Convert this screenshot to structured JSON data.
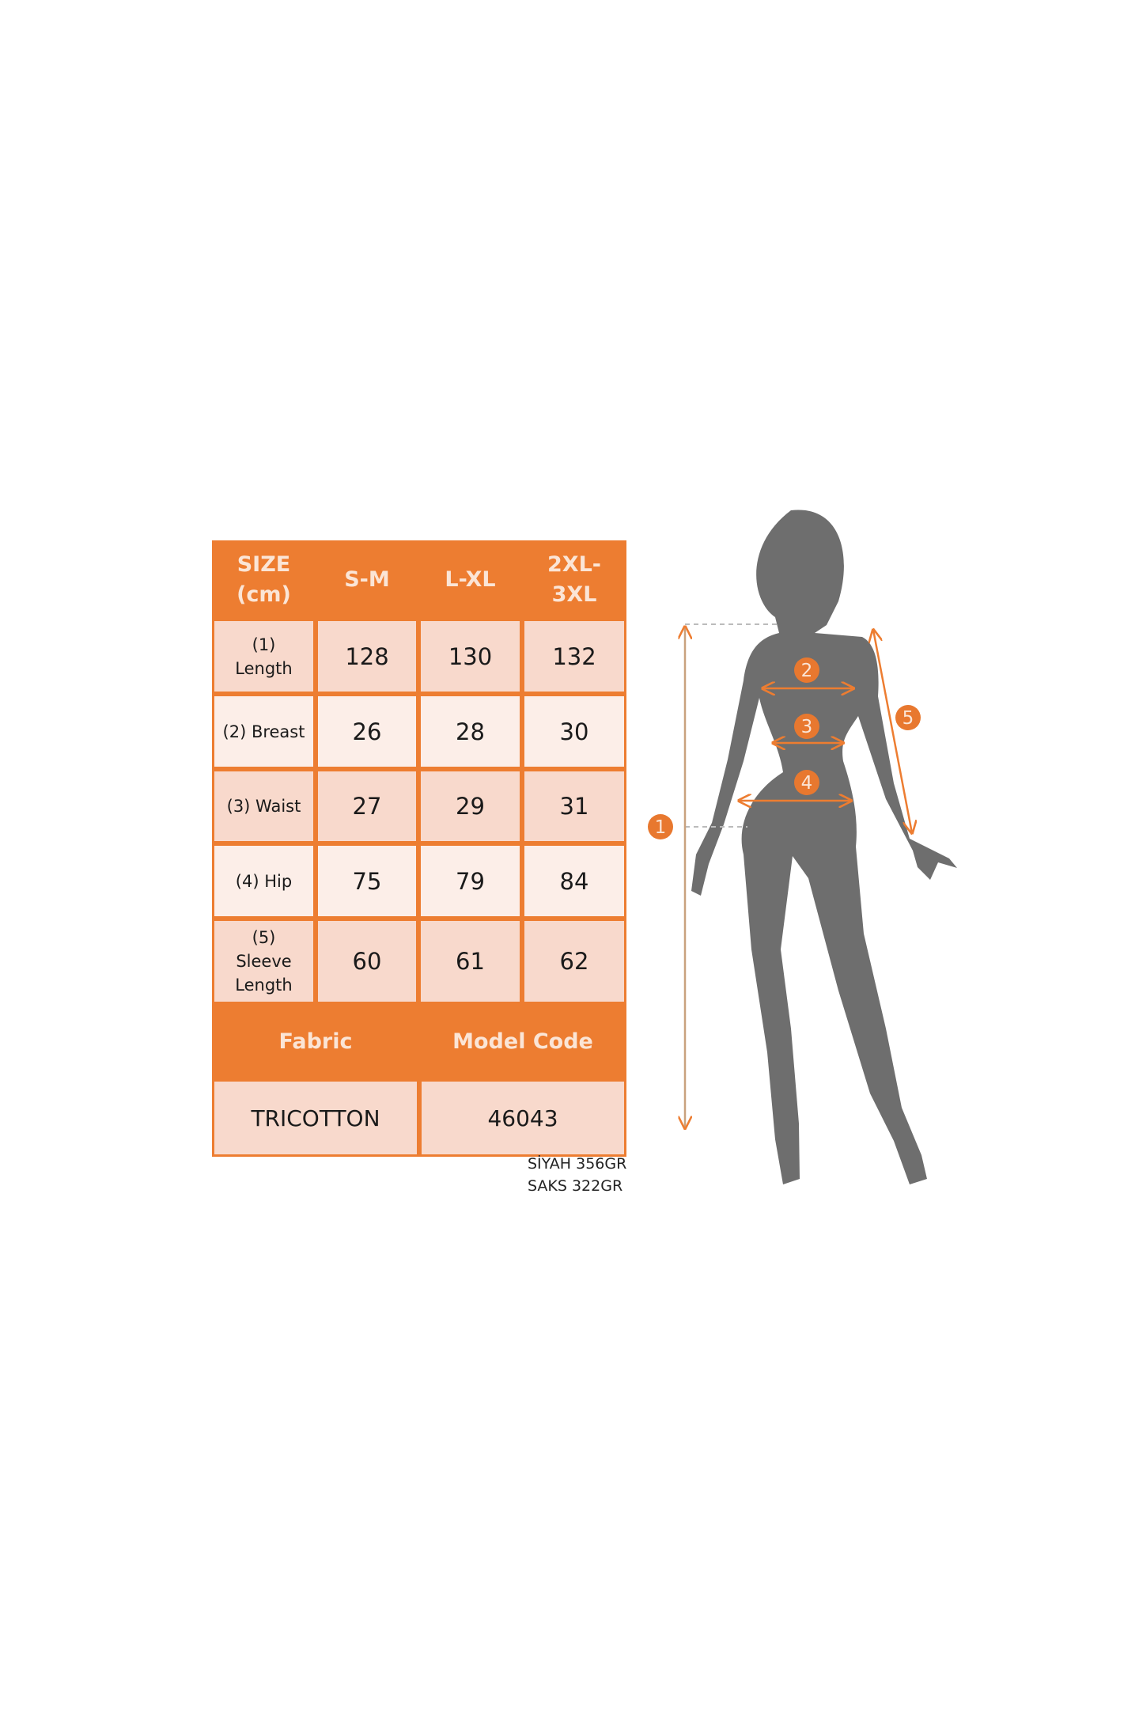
{
  "size_chart": {
    "header": {
      "size": "SIZE (cm)",
      "columns": [
        "S-M",
        "L-XL",
        "2XL-3XL"
      ]
    },
    "rows": [
      {
        "label": "(1) Length",
        "values": [
          "128",
          "130",
          "132"
        ]
      },
      {
        "label": "(2) Breast",
        "values": [
          "26",
          "28",
          "30"
        ]
      },
      {
        "label": "(3) Waist",
        "values": [
          "27",
          "29",
          "31"
        ]
      },
      {
        "label": "(4) Hip",
        "values": [
          "75",
          "79",
          "84"
        ]
      },
      {
        "label": "(5) Sleeve Length",
        "values": [
          "60",
          "61",
          "62"
        ]
      }
    ],
    "fabric_label": "Fabric",
    "model_code_label": "Model Code",
    "fabric": "TRICOTTON",
    "model_code": "46043"
  },
  "notes": [
    "SİYAH 356GR",
    "SAKS 322GR"
  ],
  "figure": {
    "markers": [
      "1",
      "2",
      "3",
      "4",
      "5"
    ]
  },
  "colors": {
    "accent": "#ED7D31",
    "row_dark": "#F8D9CC",
    "row_light": "#FCEEE8",
    "silhouette": "#6E6E6E"
  }
}
